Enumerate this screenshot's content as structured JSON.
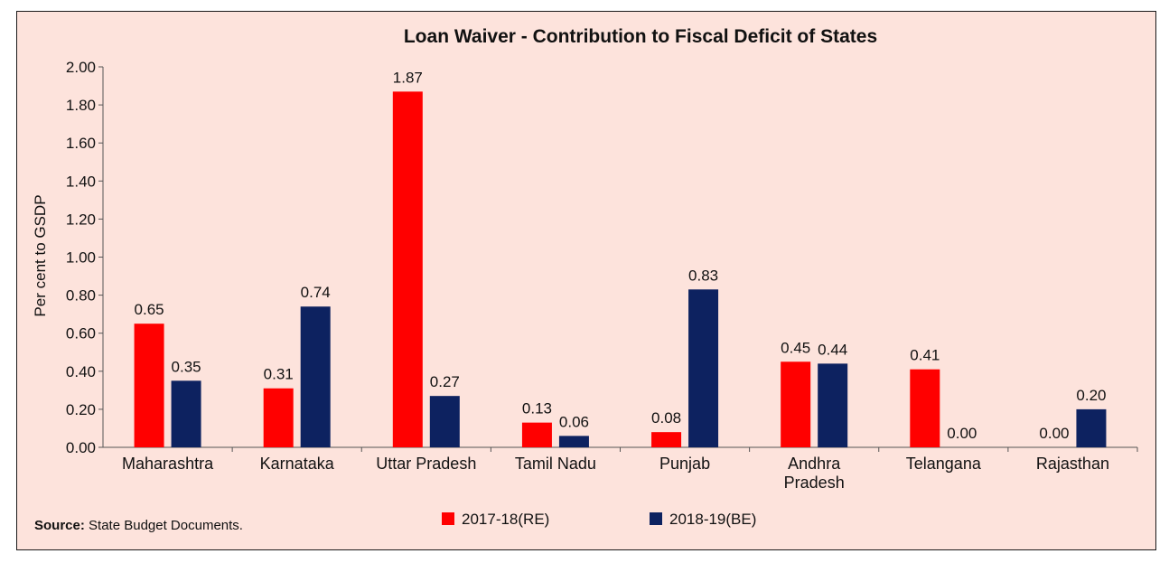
{
  "chart_data": {
    "type": "bar",
    "title": "Loan Waiver - Contribution to Fiscal Deficit of States",
    "ylabel": "Per cent to GSDP",
    "xlabel": "",
    "ylim": [
      0,
      2.0
    ],
    "yticks": [
      "0.00",
      "0.20",
      "0.40",
      "0.60",
      "0.80",
      "1.00",
      "1.20",
      "1.40",
      "1.60",
      "1.80",
      "2.00"
    ],
    "categories": [
      [
        "Maharashtra"
      ],
      [
        "Karnataka"
      ],
      [
        "Uttar Pradesh"
      ],
      [
        "Tamil Nadu"
      ],
      [
        "Punjab"
      ],
      [
        "Andhra",
        "Pradesh"
      ],
      [
        "Telangana"
      ],
      [
        "Rajasthan"
      ]
    ],
    "series": [
      {
        "name": "2017-18(RE)",
        "color": "#ff0000",
        "values": [
          0.65,
          0.31,
          1.87,
          0.13,
          0.08,
          0.45,
          0.41,
          0.0
        ],
        "labels": [
          "0.65",
          "0.31",
          "1.87",
          "0.13",
          "0.08",
          "0.45",
          "0.41",
          "0.00"
        ]
      },
      {
        "name": "2018-19(BE)",
        "color": "#0d2260",
        "values": [
          0.35,
          0.74,
          0.27,
          0.06,
          0.83,
          0.44,
          0.0,
          0.2
        ],
        "labels": [
          "0.35",
          "0.74",
          "0.27",
          "0.06",
          "0.83",
          "0.44",
          "0.00",
          "0.20"
        ]
      }
    ],
    "legend_position": "bottom"
  },
  "source": {
    "label": "Source:",
    "text": " State Budget Documents."
  }
}
